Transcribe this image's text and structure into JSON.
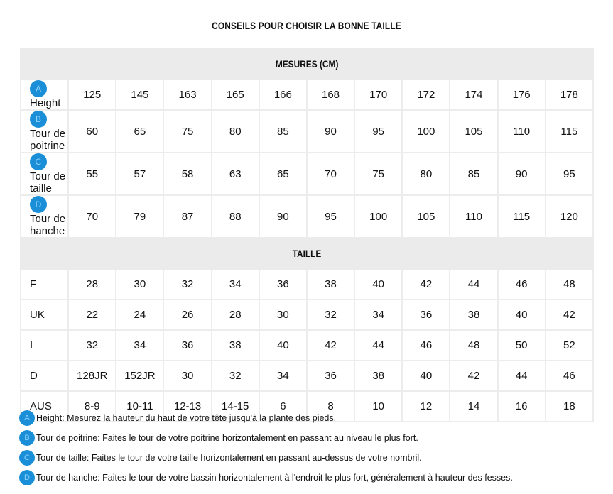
{
  "title": "CONSEILS POUR CHOISIR LA BONNE TAILLE",
  "colors": {
    "badge": "#1a8fd8",
    "section_bg": "#ebebeb"
  },
  "measures": {
    "header": "MESURES (CM)",
    "rows": [
      {
        "badge": "A",
        "label": "Height",
        "values": [
          "125",
          "145",
          "163",
          "165",
          "166",
          "168",
          "170",
          "172",
          "174",
          "176",
          "178"
        ]
      },
      {
        "badge": "B",
        "label": "Tour de poitrine",
        "values": [
          "60",
          "65",
          "75",
          "80",
          "85",
          "90",
          "95",
          "100",
          "105",
          "110",
          "115"
        ]
      },
      {
        "badge": "C",
        "label": "Tour de taille",
        "values": [
          "55",
          "57",
          "58",
          "63",
          "65",
          "70",
          "75",
          "80",
          "85",
          "90",
          "95"
        ]
      },
      {
        "badge": "D",
        "label": "Tour de hanche",
        "values": [
          "70",
          "79",
          "87",
          "88",
          "90",
          "95",
          "100",
          "105",
          "110",
          "115",
          "120"
        ]
      }
    ]
  },
  "sizes": {
    "header": "TAILLE",
    "rows": [
      {
        "label": "F",
        "values": [
          "28",
          "30",
          "32",
          "34",
          "36",
          "38",
          "40",
          "42",
          "44",
          "46",
          "48"
        ]
      },
      {
        "label": "UK",
        "values": [
          "22",
          "24",
          "26",
          "28",
          "30",
          "32",
          "34",
          "36",
          "38",
          "40",
          "42"
        ]
      },
      {
        "label": "I",
        "values": [
          "32",
          "34",
          "36",
          "38",
          "40",
          "42",
          "44",
          "46",
          "48",
          "50",
          "52"
        ]
      },
      {
        "label": "D",
        "values": [
          "128JR",
          "152JR",
          "30",
          "32",
          "34",
          "36",
          "38",
          "40",
          "42",
          "44",
          "46"
        ]
      },
      {
        "label": "AUS",
        "values": [
          "8-9",
          "10-11",
          "12-13",
          "14-15",
          "6",
          "8",
          "10",
          "12",
          "14",
          "16",
          "18"
        ]
      }
    ]
  },
  "notes": [
    {
      "badge": "A",
      "text": "Height: Mesurez la hauteur du haut de votre tête jusqu'à la plante des pieds."
    },
    {
      "badge": "B",
      "text": "Tour de poitrine: Faites le tour de votre poitrine horizontalement en passant au niveau le plus fort."
    },
    {
      "badge": "C",
      "text": "Tour de taille: Faites le tour de votre taille horizontalement en passant au-dessus de votre nombril."
    },
    {
      "badge": "D",
      "text": "Tour de hanche: Faites le tour de votre bassin horizontalement à l'endroit le plus fort, généralement à hauteur des fesses."
    }
  ]
}
